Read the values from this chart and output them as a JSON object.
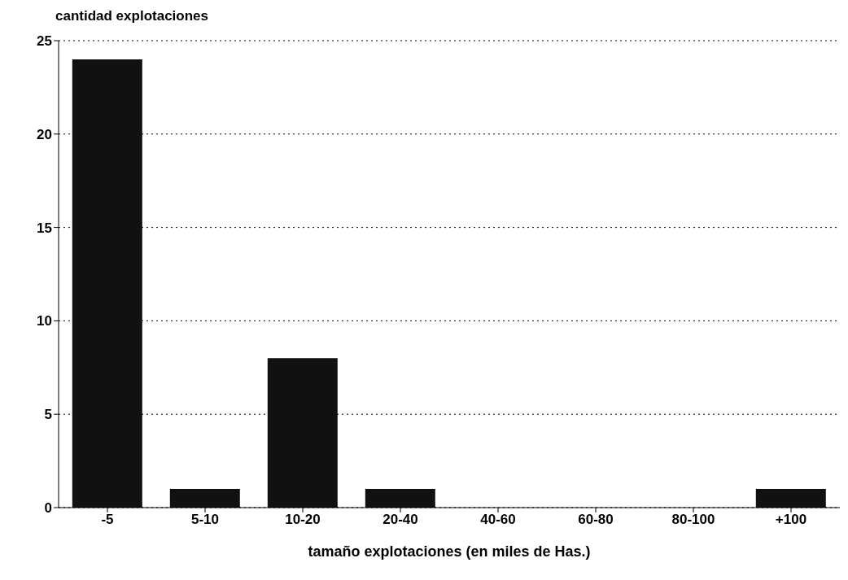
{
  "chart_data": {
    "type": "bar",
    "ylabel": "cantidad explotaciones",
    "xlabel": "tamaño explotaciones (en miles de Has.)",
    "categories": [
      "-5",
      "5-10",
      "10-20",
      "20-40",
      "40-60",
      "60-80",
      "80-100",
      "+100"
    ],
    "values": [
      24,
      1,
      8,
      1,
      0,
      0,
      0,
      1
    ],
    "color": "#111111",
    "ylim": [
      0,
      25
    ],
    "yticks": [
      0,
      5,
      10,
      15,
      20,
      25
    ],
    "grid": "y"
  }
}
